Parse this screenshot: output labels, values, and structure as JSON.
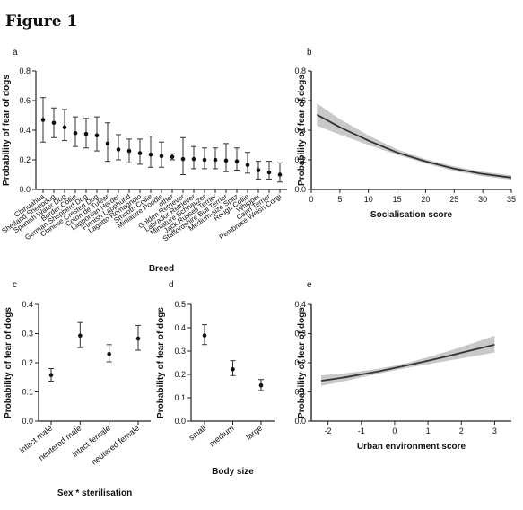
{
  "figure_title": "Figure 1",
  "chart_data": [
    {
      "panel": "a",
      "type": "scatter",
      "xlabel": "Breed",
      "ylabel": "Probability of fear of dogs",
      "ylim": [
        0,
        0.8
      ],
      "yticks": [
        "0.0",
        "0.2",
        "0.4",
        "0.6",
        "0.8"
      ],
      "error_bars": true,
      "categories": [
        "Chihuahua",
        "Shetland Sheepdog",
        "Spanish Water Dog",
        "Border Collie",
        "German Shepherd Dog",
        "Chinese Crested Dog",
        "Coton de Tulear",
        "Lapponian Herder",
        "Finnish Lapphund",
        "Lagotto Romagnolo",
        "Smooth Collie",
        "Miniature Poodle",
        "other",
        "Golden Retriever",
        "Labrador Retriever",
        "Miniature Schnauzer",
        "Jack Russell Terrier",
        "Staffordshire Bull Terrier",
        "Medium-size Spitz",
        "Rough Collie",
        "Whippet",
        "Cairn Terrier",
        "Pembroke Welsh Corgi"
      ],
      "values": [
        0.47,
        0.45,
        0.42,
        0.38,
        0.375,
        0.365,
        0.31,
        0.27,
        0.26,
        0.245,
        0.235,
        0.225,
        0.22,
        0.205,
        0.205,
        0.2,
        0.2,
        0.195,
        0.19,
        0.165,
        0.13,
        0.115,
        0.1
      ],
      "lower": [
        0.32,
        0.35,
        0.33,
        0.29,
        0.28,
        0.26,
        0.19,
        0.2,
        0.18,
        0.17,
        0.15,
        0.15,
        0.2,
        0.1,
        0.14,
        0.14,
        0.14,
        0.12,
        0.13,
        0.11,
        0.07,
        0.07,
        0.05
      ],
      "upper": [
        0.62,
        0.55,
        0.54,
        0.49,
        0.48,
        0.49,
        0.45,
        0.37,
        0.34,
        0.34,
        0.36,
        0.32,
        0.24,
        0.35,
        0.29,
        0.28,
        0.28,
        0.31,
        0.28,
        0.25,
        0.19,
        0.19,
        0.18
      ]
    },
    {
      "panel": "b",
      "type": "line",
      "xlabel": "Socialisation score",
      "ylabel": "Probability of fear of dogs",
      "xlim": [
        0,
        35
      ],
      "xticks": [
        "0",
        "5",
        "10",
        "15",
        "20",
        "25",
        "30",
        "35"
      ],
      "ylim": [
        0,
        0.8
      ],
      "yticks": [
        "0.0",
        "0.2",
        "0.4",
        "0.6",
        "0.8"
      ],
      "confidence_band": true,
      "x": [
        1,
        5,
        10,
        15,
        20,
        25,
        30,
        35
      ],
      "y": [
        0.505,
        0.42,
        0.33,
        0.25,
        0.19,
        0.14,
        0.105,
        0.08
      ],
      "y_lower": [
        0.43,
        0.37,
        0.3,
        0.235,
        0.175,
        0.125,
        0.09,
        0.065
      ],
      "y_upper": [
        0.58,
        0.475,
        0.365,
        0.27,
        0.205,
        0.155,
        0.12,
        0.095
      ]
    },
    {
      "panel": "c",
      "type": "scatter",
      "xlabel": "Sex * sterilisation",
      "ylabel": "Probability of fear of dogs",
      "ylim": [
        0,
        0.4
      ],
      "yticks": [
        "0.0",
        "0.1",
        "0.2",
        "0.3",
        "0.4"
      ],
      "error_bars": true,
      "categories": [
        "intact male",
        "neutered male",
        "intact female",
        "neutered female"
      ],
      "values": [
        0.158,
        0.293,
        0.23,
        0.283
      ],
      "lower": [
        0.137,
        0.252,
        0.203,
        0.243
      ],
      "upper": [
        0.18,
        0.338,
        0.262,
        0.328
      ]
    },
    {
      "panel": "d",
      "type": "scatter",
      "xlabel": "Body size",
      "ylabel": "Probability of fear of dogs",
      "ylim": [
        0,
        0.5
      ],
      "yticks": [
        "0.0",
        "0.1",
        "0.2",
        "0.3",
        "0.4",
        "0.5"
      ],
      "error_bars": true,
      "categories": [
        "small",
        "medium",
        "large"
      ],
      "values": [
        0.367,
        0.222,
        0.153
      ],
      "lower": [
        0.328,
        0.195,
        0.131
      ],
      "upper": [
        0.413,
        0.259,
        0.178
      ]
    },
    {
      "panel": "e",
      "type": "line",
      "xlabel": "Urban environment score",
      "ylabel": "Probability of fear of dogs",
      "xlim": [
        -2.5,
        3.5
      ],
      "xticks": [
        "-2",
        "-1",
        "0",
        "1",
        "2",
        "3"
      ],
      "ylim": [
        0,
        0.4
      ],
      "yticks": [
        "0.0",
        "0.1",
        "0.2",
        "0.3",
        "0.4"
      ],
      "confidence_band": true,
      "x": [
        -2.2,
        -1.5,
        -1,
        -0.5,
        0,
        0.5,
        1,
        1.5,
        2,
        2.5,
        3
      ],
      "y": [
        0.138,
        0.15,
        0.16,
        0.17,
        0.182,
        0.194,
        0.207,
        0.22,
        0.234,
        0.248,
        0.262
      ],
      "y_lower": [
        0.121,
        0.137,
        0.15,
        0.162,
        0.174,
        0.185,
        0.195,
        0.205,
        0.215,
        0.225,
        0.235
      ],
      "y_upper": [
        0.157,
        0.164,
        0.171,
        0.179,
        0.19,
        0.203,
        0.219,
        0.236,
        0.254,
        0.273,
        0.293
      ]
    }
  ]
}
